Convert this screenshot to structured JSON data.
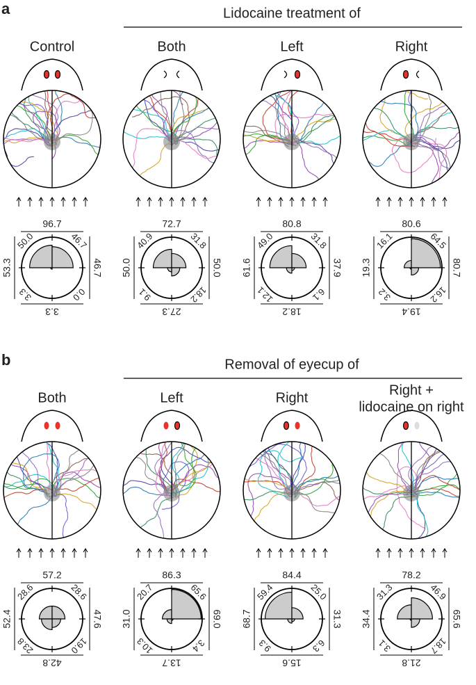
{
  "sections": [
    {
      "label": "a",
      "heading": "Lidocaine treatment of",
      "panels": [
        {
          "title": "Control",
          "rose": {
            "top": {
              "value": 96.7,
              "label": "96.7"
            },
            "bottom": {
              "value": 3.3,
              "label": "3.3"
            },
            "left": {
              "value": 53.3,
              "label": "53.3"
            },
            "right": {
              "value": 46.7,
              "label": "46.7"
            },
            "upper_left": {
              "value": 50,
              "label": "50.0"
            },
            "upper_right": {
              "value": 46.7,
              "label": "46.7"
            },
            "lower_right": {
              "value": 0,
              "label": "0.0"
            },
            "lower_left": {
              "value": 3.3,
              "label": "3.3"
            }
          }
        },
        {
          "title": "Both",
          "rose": {
            "top": {
              "value": 72.7,
              "label": "72.7"
            },
            "bottom": {
              "value": 27.3,
              "label": "27.3"
            },
            "left": {
              "value": 50,
              "label": "50.0"
            },
            "right": {
              "value": 50,
              "label": "50.0"
            },
            "upper_left": {
              "value": 40.9,
              "label": "40.9"
            },
            "upper_right": {
              "value": 31.8,
              "label": "31.8"
            },
            "lower_right": {
              "value": 18.2,
              "label": "18.2"
            },
            "lower_left": {
              "value": 9.1,
              "label": "9.1"
            }
          }
        },
        {
          "title": "Left",
          "rose": {
            "top": {
              "value": 80.8,
              "label": "80.8"
            },
            "bottom": {
              "value": 18.2,
              "label": "18.2"
            },
            "left": {
              "value": 61.6,
              "label": "61.6"
            },
            "right": {
              "value": 37.9,
              "label": "37.9"
            },
            "upper_left": {
              "value": 49,
              "label": "49.0"
            },
            "upper_right": {
              "value": 31.8,
              "label": "31.8"
            },
            "lower_right": {
              "value": 6.1,
              "label": "6.1"
            },
            "lower_left": {
              "value": 12.1,
              "label": "12.1"
            }
          }
        },
        {
          "title": "Right",
          "rose": {
            "top": {
              "value": 80.6,
              "label": "80.6"
            },
            "bottom": {
              "value": 19.4,
              "label": "19.4"
            },
            "left": {
              "value": 19.3,
              "label": "19.3"
            },
            "right": {
              "value": 80.7,
              "label": "80.7"
            },
            "upper_left": {
              "value": 16.1,
              "label": "16.1"
            },
            "upper_right": {
              "value": 64.5,
              "label": "64.5"
            },
            "lower_right": {
              "value": 16.2,
              "label": "16.2"
            },
            "lower_left": {
              "value": 3.2,
              "label": "3.2"
            }
          }
        }
      ]
    },
    {
      "label": "b",
      "heading": "Removal of eyecup of",
      "panels": [
        {
          "title": "Both",
          "rose": {
            "top": {
              "value": 57.2,
              "label": "57.2"
            },
            "bottom": {
              "value": 42.8,
              "label": "42.8"
            },
            "left": {
              "value": 52.4,
              "label": "52.4"
            },
            "right": {
              "value": 47.6,
              "label": "47.6"
            },
            "upper_left": {
              "value": 28.6,
              "label": "28.6"
            },
            "upper_right": {
              "value": 28.6,
              "label": "28.6"
            },
            "lower_right": {
              "value": 19,
              "label": "19.0"
            },
            "lower_left": {
              "value": 23.8,
              "label": "23.8"
            }
          }
        },
        {
          "title": "Left",
          "rose": {
            "top": {
              "value": 86.3,
              "label": "86.3"
            },
            "bottom": {
              "value": 13.7,
              "label": "13.7"
            },
            "left": {
              "value": 31,
              "label": "31.0"
            },
            "right": {
              "value": 69,
              "label": "69.0"
            },
            "upper_left": {
              "value": 20.7,
              "label": "20.7"
            },
            "upper_right": {
              "value": 65.6,
              "label": "65.6"
            },
            "lower_right": {
              "value": 3.4,
              "label": "3.4"
            },
            "lower_left": {
              "value": 10.3,
              "label": "10.3"
            }
          }
        },
        {
          "title": "Right",
          "rose": {
            "top": {
              "value": 84.4,
              "label": "84.4"
            },
            "bottom": {
              "value": 15.6,
              "label": "15.6"
            },
            "left": {
              "value": 68.7,
              "label": "68.7"
            },
            "right": {
              "value": 31.3,
              "label": "31.3"
            },
            "upper_left": {
              "value": 59.4,
              "label": "59.4"
            },
            "upper_right": {
              "value": 25,
              "label": "25.0"
            },
            "lower_right": {
              "value": 6.3,
              "label": "6.3"
            },
            "lower_left": {
              "value": 9.3,
              "label": "9.3"
            }
          }
        },
        {
          "title": [
            "Right +",
            "lidocaine on right"
          ],
          "rose": {
            "top": {
              "value": 78.2,
              "label": "78.2"
            },
            "bottom": {
              "value": 21.8,
              "label": "21.8"
            },
            "left": {
              "value": 34.4,
              "label": "34.4"
            },
            "right": {
              "value": 65.6,
              "label": "65.6"
            },
            "upper_left": {
              "value": 31.3,
              "label": "31.3"
            },
            "upper_right": {
              "value": 46.9,
              "label": "46.9"
            },
            "lower_right": {
              "value": 18.7,
              "label": "18.7"
            },
            "lower_left": {
              "value": 3.1,
              "label": "3.1"
            }
          }
        }
      ]
    }
  ]
}
